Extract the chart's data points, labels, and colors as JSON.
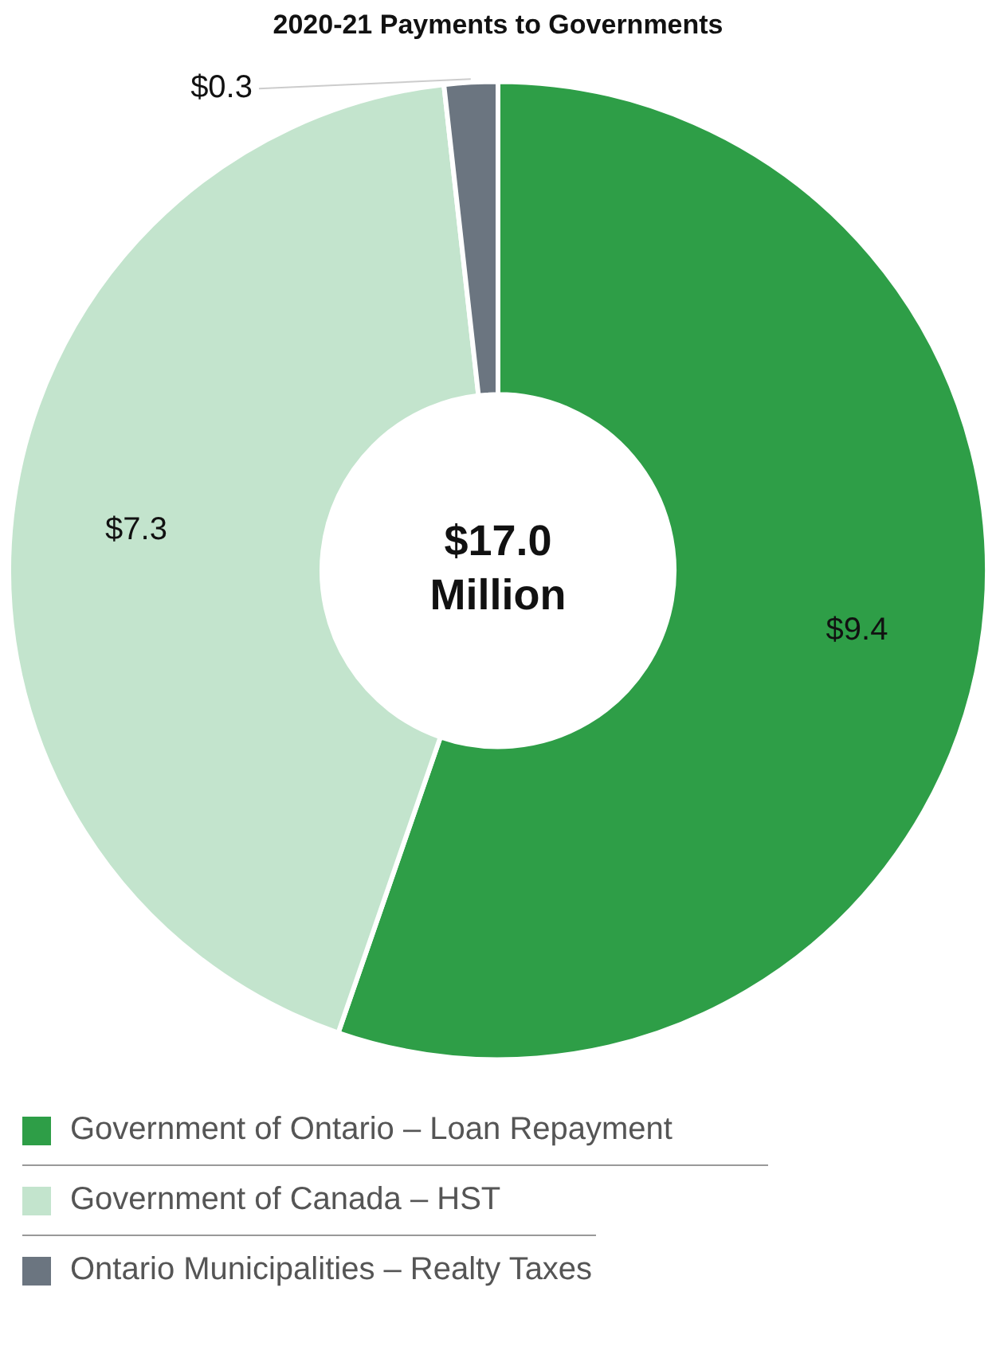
{
  "chart_data": {
    "type": "donut",
    "title": "2020-21 Payments to Governments",
    "categories": [
      "Government of Ontario – Loan Repayment",
      "Government of Canada – HST",
      "Ontario Municipalities – Realty Taxes"
    ],
    "values": [
      9.4,
      7.3,
      0.3
    ],
    "value_labels": [
      "$9.4",
      "$7.3",
      "$0.3"
    ],
    "colors": [
      "#2e9e47",
      "#c3e4cd",
      "#6b7580"
    ],
    "annotations": [
      "$17.0 Million"
    ],
    "legend": "bottom"
  }
}
